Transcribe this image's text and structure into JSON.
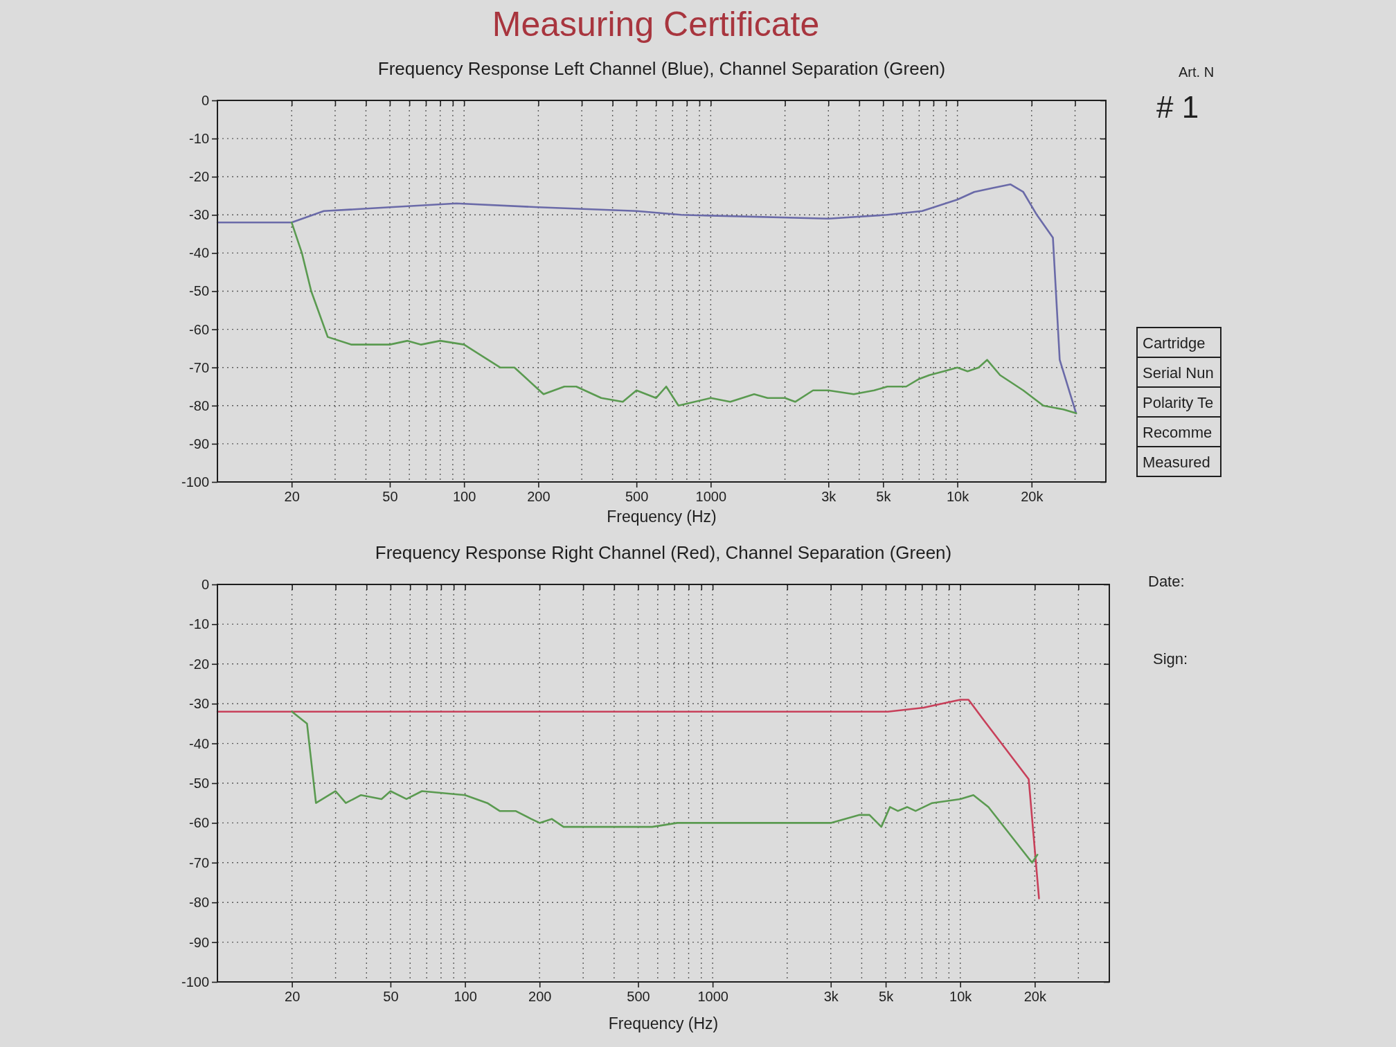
{
  "chart_data": [
    {
      "type": "other",
      "title": "Measuring Certificate",
      "annotations": [
        "Art. N",
        "# 1",
        "Cartridge",
        "Serial Nun",
        "Polarity Te",
        "Recomme",
        "Measured",
        "Date:",
        "Sign:"
      ]
    },
    {
      "type": "line",
      "title": "Frequency Response Left Channel (Blue), Channel Separation (Green)",
      "xlabel": "Frequency (Hz)",
      "log": "x",
      "xlim": [
        10,
        40000
      ],
      "xticks": [
        20,
        {
          "value": 30,
          "label": null
        },
        {
          "value": 40,
          "label": null
        },
        50,
        {
          "value": 60,
          "label": null
        },
        {
          "value": 70,
          "label": null
        },
        {
          "value": 80,
          "label": null
        },
        {
          "value": 90,
          "label": null
        },
        100,
        200,
        {
          "value": 300,
          "label": null
        },
        {
          "value": 400,
          "label": null
        },
        500,
        {
          "value": 600,
          "label": null
        },
        {
          "value": 700,
          "label": null
        },
        {
          "value": 800,
          "label": null
        },
        {
          "value": 900,
          "label": null
        },
        1000,
        {
          "value": 2000,
          "label": null
        },
        {
          "value": 3000,
          "label": "3k"
        },
        {
          "value": 4000,
          "label": null
        },
        {
          "value": 5000,
          "label": "5k"
        },
        {
          "value": 6000,
          "label": null
        },
        {
          "value": 7000,
          "label": null
        },
        {
          "value": 8000,
          "label": null
        },
        {
          "value": 9000,
          "label": null
        },
        {
          "value": 10000,
          "label": "10k"
        },
        {
          "value": 20000,
          "label": "20k"
        },
        {
          "value": 30000,
          "label": null
        }
      ],
      "ylim": [
        -100,
        0
      ],
      "yticks": [
        -100,
        -90,
        -80,
        -70,
        -60,
        -50,
        -40,
        -30,
        -20,
        -10,
        0
      ],
      "grid": true,
      "series": [
        {
          "color": "#6a6aa8",
          "x": [
            10,
            20,
            27,
            50,
            93,
            200,
            500,
            760,
            3000,
            5200,
            7200,
            10000,
            11700,
            13800,
            16400,
            18500,
            21000,
            24400,
            26000,
            30300
          ],
          "values": [
            -32,
            -32,
            -29,
            -28,
            -27,
            -28,
            -29,
            -30,
            -31,
            -30,
            -29,
            -26,
            -24,
            -23,
            -22,
            -24,
            -30,
            -36,
            -68,
            -82
          ]
        },
        {
          "color": "#5a9a50",
          "x": [
            20,
            22,
            24,
            28,
            35,
            50,
            59,
            67,
            80,
            100,
            140,
            160,
            210,
            255,
            285,
            360,
            440,
            500,
            600,
            660,
            740,
            1000,
            1200,
            1500,
            1700,
            2000,
            2200,
            2600,
            3000,
            3800,
            4600,
            5200,
            6200,
            7000,
            7700,
            8800,
            10000,
            11000,
            12200,
            13200,
            14900,
            18500,
            22300,
            26900,
            30300
          ],
          "values": [
            -32,
            -40,
            -50,
            -62,
            -64,
            -64,
            -63,
            -64,
            -63,
            -64,
            -70,
            -70,
            -77,
            -75,
            -75,
            -78,
            -79,
            -76,
            -78,
            -75,
            -80,
            -78,
            -79,
            -77,
            -78,
            -78,
            -79,
            -76,
            -76,
            -77,
            -76,
            -75,
            -75,
            -73,
            -72,
            -71,
            -70,
            -71,
            -70,
            -68,
            -72,
            -76,
            -80,
            -81,
            -82
          ]
        }
      ]
    },
    {
      "type": "line",
      "title": "Frequency Response Right Channel (Red), Channel Separation (Green)",
      "xlabel": "Frequency (Hz)",
      "log": "x",
      "xlim": [
        10,
        40000
      ],
      "xticks": [
        20,
        {
          "value": 30,
          "label": null
        },
        {
          "value": 40,
          "label": null
        },
        50,
        {
          "value": 60,
          "label": null
        },
        {
          "value": 70,
          "label": null
        },
        {
          "value": 80,
          "label": null
        },
        {
          "value": 90,
          "label": null
        },
        100,
        200,
        {
          "value": 300,
          "label": null
        },
        {
          "value": 400,
          "label": null
        },
        500,
        {
          "value": 600,
          "label": null
        },
        {
          "value": 700,
          "label": null
        },
        {
          "value": 800,
          "label": null
        },
        {
          "value": 900,
          "label": null
        },
        1000,
        {
          "value": 2000,
          "label": null
        },
        {
          "value": 3000,
          "label": "3k"
        },
        {
          "value": 4000,
          "label": null
        },
        {
          "value": 5000,
          "label": "5k"
        },
        {
          "value": 6000,
          "label": null
        },
        {
          "value": 7000,
          "label": null
        },
        {
          "value": 8000,
          "label": null
        },
        {
          "value": 9000,
          "label": null
        },
        {
          "value": 10000,
          "label": "10k"
        },
        {
          "value": 20000,
          "label": "20k"
        },
        {
          "value": 30000,
          "label": null
        }
      ],
      "ylim": [
        -100,
        0
      ],
      "yticks": [
        -100,
        -90,
        -80,
        -70,
        -60,
        -50,
        -40,
        -30,
        -20,
        -10,
        0
      ],
      "grid": true,
      "series": [
        {
          "color": "#c8405a",
          "x": [
            10,
            20,
            30,
            50,
            100,
            200,
            500,
            720,
            1000,
            3000,
            5100,
            7100,
            10000,
            10800,
            12400,
            18900,
            20800
          ],
          "values": [
            -32,
            -32,
            -32,
            -32,
            -32,
            -32,
            -32,
            -32,
            -32,
            -32,
            -32,
            -31,
            -29,
            -29,
            -34,
            -49,
            -79
          ]
        },
        {
          "color": "#5a9a50",
          "x": [
            20,
            23,
            25,
            30,
            33,
            38,
            46,
            50,
            58,
            67,
            100,
            123,
            138,
            160,
            185,
            200,
            224,
            250,
            400,
            570,
            720,
            1000,
            1500,
            2000,
            3000,
            3900,
            4300,
            4800,
            5200,
            5600,
            6100,
            6600,
            7700,
            10000,
            11300,
            13000,
            19500,
            20500
          ],
          "values": [
            -32,
            -35,
            -55,
            -52,
            -55,
            -53,
            -54,
            -52,
            -54,
            -52,
            -53,
            -55,
            -57,
            -57,
            -59,
            -60,
            -59,
            -61,
            -61,
            -61,
            -60,
            -60,
            -60,
            -60,
            -60,
            -58,
            -58,
            -61,
            -56,
            -57,
            -56,
            -57,
            -55,
            -54,
            -53,
            -56,
            -70,
            -68
          ]
        }
      ]
    }
  ]
}
